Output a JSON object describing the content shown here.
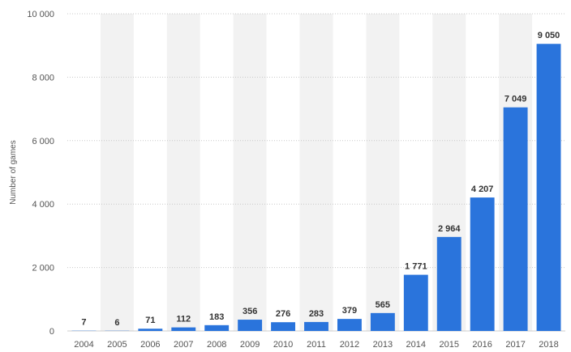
{
  "chart_data": {
    "type": "bar",
    "title": "",
    "xlabel": "",
    "ylabel": "Number of games",
    "categories": [
      "2004",
      "2005",
      "2006",
      "2007",
      "2008",
      "2009",
      "2010",
      "2011",
      "2012",
      "2013",
      "2014",
      "2015",
      "2016",
      "2017",
      "2018"
    ],
    "values": [
      7,
      6,
      71,
      112,
      183,
      356,
      276,
      283,
      379,
      565,
      1771,
      2964,
      4207,
      7049,
      9050
    ],
    "value_labels": [
      "7",
      "6",
      "71",
      "112",
      "183",
      "356",
      "276",
      "283",
      "379",
      "565",
      "1 771",
      "2 964",
      "4 207",
      "7 049",
      "9 050"
    ],
    "ylim": [
      0,
      10000
    ],
    "yticks": [
      0,
      2000,
      4000,
      6000,
      8000,
      10000
    ],
    "ytick_labels": [
      "0",
      "2 000",
      "4 000",
      "6 000",
      "8 000",
      "10 000"
    ],
    "grid": true,
    "legend": "none",
    "bar_color": "#2a74dc",
    "alternate_band_color": "#f2f2f2"
  }
}
